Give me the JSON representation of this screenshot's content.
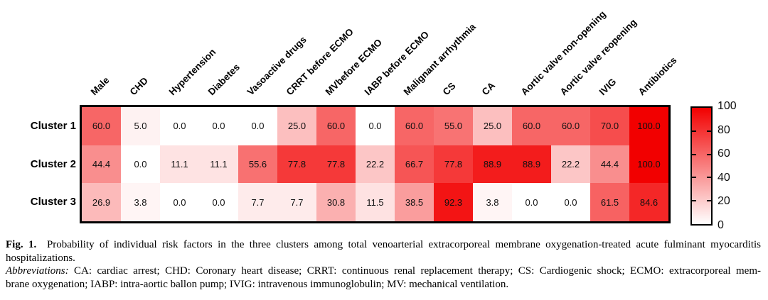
{
  "chart_data": {
    "type": "heatmap",
    "title": "Probability of individual risk factors in the three clusters",
    "categories": [
      "Male",
      "CHD",
      "Hypertension",
      "Diabetes",
      "Vasoactive drugs",
      "CRRT before ECMO",
      "MVbefore ECMO",
      "IABP before ECMO",
      "Malignant arrhythmia",
      "CS",
      "CA",
      "Aortic valve non-opening",
      "Aortic valve reopening",
      "IVIG",
      "Antibiotics"
    ],
    "rows": [
      "Cluster 1",
      "Cluster 2",
      "Cluster 3"
    ],
    "series": [
      {
        "name": "Cluster 1",
        "values": [
          60.0,
          5.0,
          0.0,
          0.0,
          0.0,
          25.0,
          60.0,
          0.0,
          60.0,
          55.0,
          25.0,
          60.0,
          60.0,
          70.0,
          100.0
        ]
      },
      {
        "name": "Cluster 2",
        "values": [
          44.4,
          0.0,
          11.1,
          11.1,
          55.6,
          77.8,
          77.8,
          22.2,
          66.7,
          77.8,
          88.9,
          88.9,
          22.2,
          44.4,
          100.0
        ]
      },
      {
        "name": "Cluster 3",
        "values": [
          26.9,
          3.8,
          0.0,
          0.0,
          7.7,
          7.7,
          30.8,
          11.5,
          38.5,
          92.3,
          3.8,
          0.0,
          0.0,
          61.5,
          84.6
        ]
      }
    ],
    "colorbar": {
      "ticks": [
        0,
        20,
        40,
        60,
        80,
        100
      ],
      "min": 0,
      "max": 100,
      "color_low": "#ffffff",
      "color_high": "#f20000",
      "position": "right"
    },
    "grid": false,
    "legend_position": "none"
  },
  "caption": {
    "fig_label": "Fig. 1.",
    "line1_rest": "Probability of individual risk factors in the three clusters among total venoarterial extracorporeal membrane oxygenation-treated acute fulminant myocarditis",
    "line2": "hospitalizations.",
    "abbrev_label": "Abbreviations:",
    "line3_rest": "CA: cardiac arrest; CHD: Coronary heart disease; CRRT: continuous renal replacement therapy; CS: Cardiogenic shock; ECMO: extracorporeal mem-",
    "line4": "brane oxygenation; IABP: intra-aortic ballon pump; IVIG: intravenous immunoglobulin; MV: mechanical ventilation."
  }
}
